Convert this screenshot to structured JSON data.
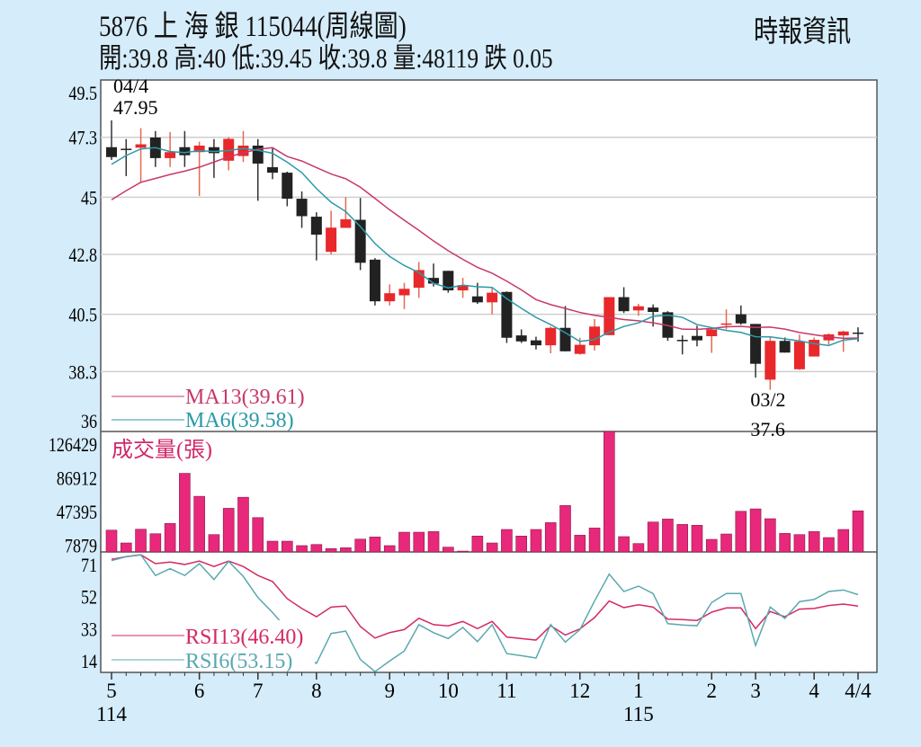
{
  "header": {
    "title": "5876  上 海 銀 115044(周線圖)",
    "quote": "開:39.8 高:40 低:39.45 收:39.8 量:48119 跌 0.05",
    "source": "時報資訊"
  },
  "colors": {
    "background": "#d5ecfa",
    "up_candle": "#e8282b",
    "down_candle": "#222222",
    "ma13": "#c8386a",
    "ma6": "#2a9aa8",
    "volume": "#e8287a",
    "rsi13": "#d42a64",
    "rsi6": "#5aa8b0"
  },
  "chart_data": [
    {
      "type": "candlestick",
      "panel": "price",
      "ylim": [
        36.0,
        49.5
      ],
      "yticks": [
        49.5,
        47.3,
        45.0,
        42.8,
        40.5,
        38.3,
        36.0
      ],
      "grid": true,
      "ohlc": [
        [
          46.92,
          47.95,
          46.43,
          46.54
        ],
        [
          46.86,
          47.23,
          45.81,
          46.86
        ],
        [
          46.9,
          47.65,
          45.57,
          47.03
        ],
        [
          47.29,
          47.54,
          46.16,
          46.5
        ],
        [
          46.5,
          47.5,
          46.16,
          46.73
        ],
        [
          46.92,
          47.54,
          46.16,
          46.61
        ],
        [
          46.73,
          47.13,
          45.05,
          46.98
        ],
        [
          46.92,
          47.23,
          45.74,
          46.69
        ],
        [
          46.4,
          47.3,
          46.03,
          47.24
        ],
        [
          46.58,
          47.54,
          46.35,
          46.98
        ],
        [
          46.98,
          47.23,
          44.86,
          46.29
        ],
        [
          46.15,
          46.9,
          45.69,
          45.94
        ],
        [
          45.94,
          45.98,
          44.65,
          44.94
        ],
        [
          44.94,
          45.22,
          43.82,
          44.27
        ],
        [
          44.25,
          44.42,
          42.57,
          43.56
        ],
        [
          42.9,
          44.48,
          42.8,
          43.83
        ],
        [
          43.82,
          45.0,
          43.82,
          44.15
        ],
        [
          44.13,
          44.97,
          42.2,
          42.48
        ],
        [
          42.6,
          42.66,
          40.84,
          41.0
        ],
        [
          41.0,
          41.65,
          40.84,
          41.31
        ],
        [
          41.23,
          41.71,
          40.7,
          41.48
        ],
        [
          41.52,
          42.51,
          41.13,
          42.2
        ],
        [
          41.9,
          42.45,
          41.57,
          41.68
        ],
        [
          42.17,
          42.17,
          41.33,
          41.42
        ],
        [
          41.42,
          41.9,
          41.13,
          41.62
        ],
        [
          41.19,
          41.71,
          40.9,
          40.96
        ],
        [
          40.96,
          41.5,
          40.5,
          41.33
        ],
        [
          41.36,
          41.38,
          39.4,
          39.6
        ],
        [
          39.69,
          39.92,
          39.4,
          39.46
        ],
        [
          39.5,
          39.64,
          39.15,
          39.31
        ],
        [
          39.31,
          40.03,
          39.0,
          39.98
        ],
        [
          39.98,
          40.82,
          39.08,
          39.08
        ],
        [
          38.98,
          39.6,
          38.95,
          39.33
        ],
        [
          39.31,
          40.32,
          39.11,
          40.03
        ],
        [
          39.7,
          41.16,
          39.7,
          41.16
        ],
        [
          41.16,
          41.54,
          40.55,
          40.62
        ],
        [
          40.65,
          40.9,
          40.44,
          40.81
        ],
        [
          40.76,
          40.88,
          40.03,
          40.59
        ],
        [
          40.58,
          40.62,
          39.48,
          39.6
        ],
        [
          39.52,
          39.69,
          38.96,
          39.52
        ],
        [
          39.67,
          40.06,
          39.27,
          39.5
        ],
        [
          39.66,
          40.0,
          39.02,
          39.92
        ],
        [
          40.1,
          40.69,
          39.92,
          40.15
        ],
        [
          40.5,
          40.84,
          40.1,
          40.15
        ],
        [
          40.13,
          40.13,
          38.07,
          38.6
        ],
        [
          37.99,
          39.61,
          37.6,
          39.48
        ],
        [
          39.48,
          39.61,
          39.03,
          39.03
        ],
        [
          38.39,
          39.72,
          38.37,
          39.46
        ],
        [
          38.88,
          39.61,
          38.88,
          39.52
        ],
        [
          39.5,
          39.77,
          39.34,
          39.73
        ],
        [
          39.69,
          39.87,
          39.06,
          39.84
        ],
        [
          39.8,
          40.0,
          39.45,
          39.8
        ]
      ],
      "ma13_start": [
        44.9,
        45.25,
        45.57,
        45.72,
        45.87,
        46.0,
        46.15,
        46.35,
        46.55,
        46.7,
        46.84,
        46.9
      ],
      "ma6_start": [
        46.26,
        46.6,
        46.85,
        46.9,
        46.75
      ],
      "legend": [
        {
          "label": "MA13(39.61)",
          "series": "ma13"
        },
        {
          "label": "MA6(39.58)",
          "series": "ma6"
        }
      ],
      "annotations": [
        {
          "date": "04/4",
          "value": "47.95",
          "candle": 0,
          "position": "above"
        },
        {
          "date": "03/2",
          "value": "37.6",
          "candle": 45,
          "position": "below"
        }
      ]
    },
    {
      "type": "bar",
      "panel": "volume",
      "title": "成交量(張)",
      "yticks": [
        126429,
        86912,
        47395,
        7879
      ],
      "ylim": [
        0,
        141000
      ],
      "values": [
        25500,
        10500,
        26600,
        21300,
        33300,
        92000,
        65100,
        20300,
        51100,
        64000,
        40200,
        12600,
        12600,
        7400,
        8700,
        3900,
        4900,
        15000,
        17500,
        7400,
        23100,
        23100,
        23800,
        5600,
        1000,
        18600,
        10500,
        26300,
        18600,
        26300,
        34300,
        54300,
        19600,
        28000,
        141000,
        17900,
        9800,
        35000,
        38500,
        32200,
        31200,
        14700,
        21000,
        47600,
        50400,
        38900,
        21700,
        20300,
        23800,
        16800,
        26300,
        48119
      ]
    },
    {
      "type": "line",
      "panel": "rsi",
      "yticks": [
        71,
        52,
        33,
        14
      ],
      "ylim": [
        7.2,
        78.4
      ],
      "series": [
        {
          "name": "RSI13(46.40)",
          "key": "rsi13",
          "values": [
            74,
            75.6,
            76.7,
            71.5,
            72.4,
            71,
            73,
            69.8,
            73,
            69.8,
            64.5,
            60.9,
            50.8,
            45,
            40.1,
            45.8,
            46.4,
            34.3,
            27.5,
            30.7,
            32.5,
            39.2,
            35.4,
            34.7,
            37.3,
            33.1,
            37.3,
            28.1,
            27.2,
            26.3,
            34.8,
            29.3,
            32.9,
            39.6,
            49.4,
            45.5,
            47.2,
            45.8,
            38.7,
            38.4,
            37.9,
            42.8,
            45.3,
            45.3,
            33.1,
            43.2,
            40.1,
            44.6,
            45,
            46.7,
            47.6,
            46.4
          ]
        },
        {
          "name": "RSI6(53.15)",
          "key": "rsi6",
          "values": [
            73.3,
            75.6,
            76.7,
            64.5,
            68.5,
            64.5,
            71.5,
            62.1,
            72.8,
            63.9,
            51.5,
            42.6,
            32.7,
            18.3,
            12.5,
            30.2,
            31.6,
            14.8,
            7.7,
            13.9,
            19.8,
            35.4,
            30.7,
            27.2,
            33.8,
            25.4,
            35.4,
            18.3,
            17.1,
            15.7,
            35.5,
            25.1,
            32.5,
            49.4,
            65.3,
            55,
            58.2,
            53.8,
            36,
            35.2,
            34.8,
            48.5,
            53.8,
            53.8,
            23.1,
            45.8,
            39.1,
            49,
            50.3,
            55,
            55.9,
            53.15
          ]
        }
      ]
    }
  ],
  "x_axis": {
    "ticks": [
      {
        "label": "5",
        "candle": 0,
        "year": "114"
      },
      {
        "label": "6",
        "candle": 6
      },
      {
        "label": "7",
        "candle": 10
      },
      {
        "label": "8",
        "candle": 14
      },
      {
        "label": "9",
        "candle": 19
      },
      {
        "label": "10",
        "candle": 23
      },
      {
        "label": "11",
        "candle": 27
      },
      {
        "label": "12",
        "candle": 32
      },
      {
        "label": "1",
        "candle": 36,
        "year": "115"
      },
      {
        "label": "2",
        "candle": 41
      },
      {
        "label": "3",
        "candle": 44
      },
      {
        "label": "4",
        "candle": 48
      },
      {
        "label": "4/4",
        "candle": 51
      }
    ]
  }
}
